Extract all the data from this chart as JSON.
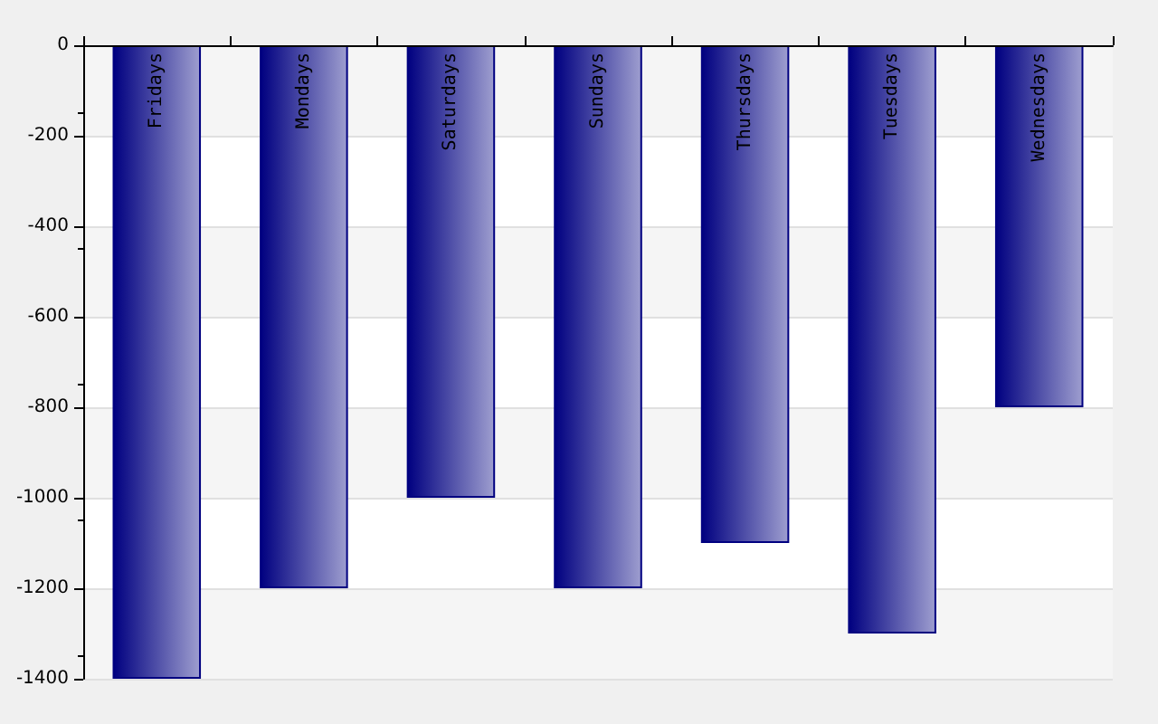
{
  "chart_data": {
    "type": "bar",
    "categories": [
      "Fridays",
      "Mondays",
      "Saturdays",
      "Sundays",
      "Thursdays",
      "Tuesdays",
      "Wednesdays"
    ],
    "values": [
      -1400,
      -1200,
      -1000,
      -1200,
      -1100,
      -1300,
      -800
    ],
    "color": "#000080",
    "ylim": [
      -1400,
      0
    ],
    "yticks": [
      -1400,
      -1200,
      -1000,
      -800,
      -600,
      -400,
      -200,
      0
    ],
    "grid": "y"
  }
}
